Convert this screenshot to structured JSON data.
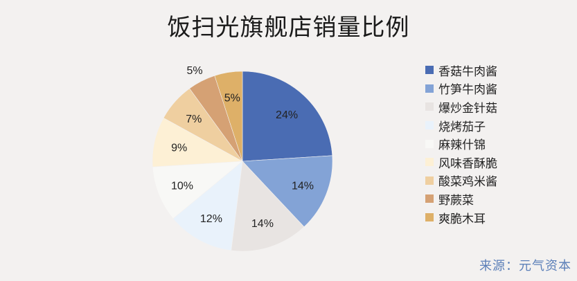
{
  "title": "饭扫光旗舰店销量比例",
  "source": "来源：元气资本",
  "chart_data": {
    "type": "pie",
    "title": "饭扫光旗舰店销量比例",
    "categories": [
      "香菇牛肉酱",
      "竹笋牛肉酱",
      "爆炒金针菇",
      "烧烤茄子",
      "麻辣什锦",
      "风味香酥脆",
      "酸菜鸡米酱",
      "野蕨菜",
      "爽脆木耳"
    ],
    "values": [
      24,
      14,
      14,
      12,
      10,
      9,
      7,
      5,
      5
    ],
    "labels": [
      "24%",
      "14%",
      "14%",
      "12%",
      "10%",
      "9%",
      "7%",
      "5%",
      "5%"
    ],
    "colors": [
      "#4a6cb3",
      "#83a3d6",
      "#e8e4e2",
      "#e9f2fb",
      "#f8f8f6",
      "#fdf0d5",
      "#efcfa0",
      "#d5a174",
      "#deb068"
    ],
    "legend_position": "right",
    "start_angle": "12 o'clock",
    "direction": "clockwise"
  }
}
